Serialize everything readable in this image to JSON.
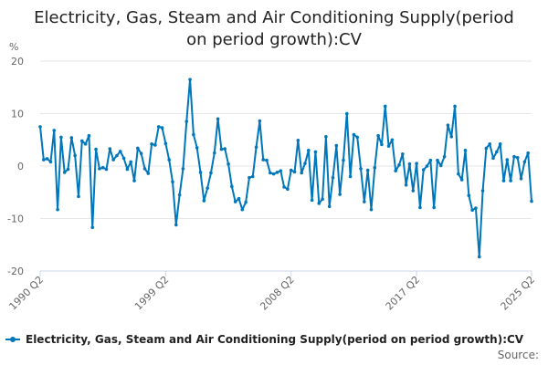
{
  "header": {
    "title_line1": "Electricity, Gas, Steam and Air Conditioning Supply(period",
    "title_line2": "on period growth):CV"
  },
  "legend": {
    "label": "Electricity, Gas, Steam and Air Conditioning Supply(period on period growth):CV"
  },
  "footer": {
    "source_label": "Source:"
  },
  "colors": {
    "series": "#0077bb",
    "grid": "#e6e6e6",
    "axis": "#ccd6eb"
  },
  "chart_data": {
    "type": "line",
    "title": "Electricity, Gas, Steam and Air Conditioning Supply(period on period growth):CV",
    "ylabel": "%",
    "xlabel": "",
    "ylim": [
      -20,
      20
    ],
    "yticks": [
      20,
      10,
      0,
      -10,
      -20
    ],
    "xticks": [
      "1990 Q2",
      "1999 Q2",
      "2008 Q2",
      "2017 Q2",
      "2025 Q2"
    ],
    "x_start": "1990 Q2",
    "x_end": "2025 Q2",
    "grid": true,
    "legend_position": "bottom",
    "series": [
      {
        "name": "Electricity, Gas, Steam and Air Conditioning Supply(period on period growth):CV",
        "values": [
          7.5,
          1.2,
          1.4,
          0.8,
          6.8,
          -8.3,
          5.5,
          -1.2,
          -0.6,
          5.4,
          2.0,
          -5.8,
          4.8,
          4.2,
          5.8,
          -11.7,
          3.2,
          -0.5,
          -0.3,
          -0.6,
          3.3,
          1.2,
          2.0,
          2.8,
          1.5,
          -0.6,
          0.8,
          -2.8,
          3.4,
          2.4,
          -0.5,
          -1.4,
          4.2,
          4.0,
          7.5,
          7.3,
          4.3,
          1.2,
          -3.0,
          -11.2,
          -5.5,
          -0.5,
          8.5,
          16.5,
          6.0,
          3.5,
          -1.2,
          -6.6,
          -4.2,
          -1.3,
          2.5,
          9.0,
          3.2,
          3.3,
          0.4,
          -3.9,
          -6.8,
          -6.2,
          -8.3,
          -6.9,
          -2.2,
          -2.0,
          3.6,
          8.6,
          1.2,
          1.1,
          -1.3,
          -1.5,
          -1.2,
          -0.9,
          -4.0,
          -4.4,
          -0.8,
          -1.1,
          4.9,
          -1.3,
          0.5,
          3.0,
          -6.5,
          2.7,
          -7.1,
          -6.3,
          5.6,
          -7.7,
          -2.2,
          3.9,
          -5.4,
          1.1,
          10.0,
          -2.0,
          6.0,
          5.5,
          -0.5,
          -6.8,
          -0.8,
          -8.3,
          -0.3,
          5.8,
          4.1,
          11.4,
          3.8,
          5.0,
          -0.9,
          0.2,
          2.3,
          -3.6,
          0.4,
          -4.7,
          0.5,
          -7.9,
          -0.7,
          0.0,
          1.1,
          -7.9,
          1.1,
          0.1,
          1.8,
          7.8,
          5.6,
          11.4,
          -1.5,
          -2.6,
          3.0,
          -5.6,
          -8.4,
          -8.0,
          -17.3,
          -4.7,
          3.4,
          4.2,
          1.5,
          2.7,
          4.2,
          -2.8,
          1.2,
          -2.8,
          1.8,
          1.6,
          -2.4,
          0.8,
          2.5,
          -6.7
        ]
      }
    ]
  }
}
